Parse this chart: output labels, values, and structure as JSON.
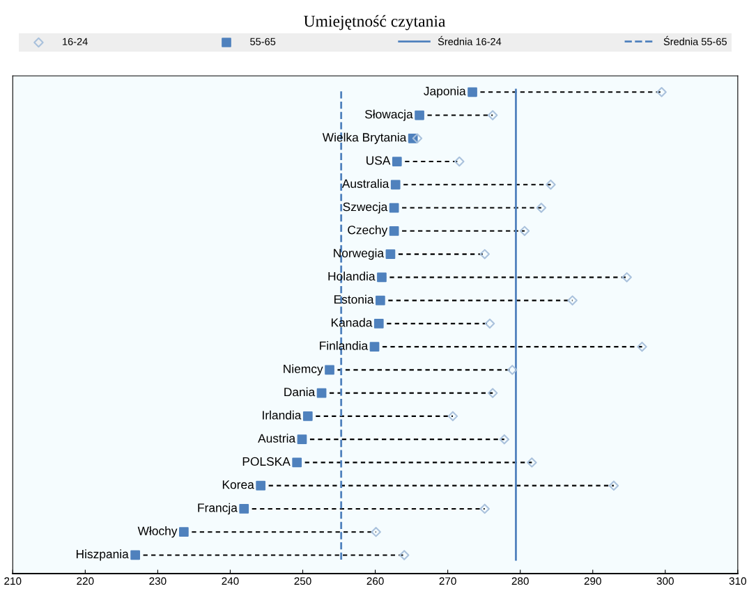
{
  "chart_data": {
    "type": "scatter",
    "orientation": "horizontal",
    "title": "Umiejętność czytania",
    "categories": [
      "Japonia",
      "Słowacja",
      "Wielka Brytania",
      "USA",
      "Australia",
      "Szwecja",
      "Czechy",
      "Norwegia",
      "Holandia",
      "Estonia",
      "Kanada",
      "Finlandia",
      "Niemcy",
      "Dania",
      "Irlandia",
      "Austria",
      "POLSKA",
      "Korea",
      "Francja",
      "Włochy",
      "Hiszpania"
    ],
    "series": [
      {
        "name": "16-24",
        "color": "#a9c1dc",
        "marker": "diamond",
        "values": [
          299.5,
          276.2,
          265.8,
          271.6,
          284.2,
          282.9,
          280.6,
          275.1,
          294.7,
          287.2,
          275.8,
          296.8,
          278.9,
          276.2,
          270.7,
          277.8,
          281.6,
          292.9,
          275.1,
          260.1,
          264.0
        ]
      },
      {
        "name": "55-65",
        "color": "#4f81bd",
        "marker": "square",
        "values": [
          273.4,
          266.1,
          265.2,
          263.0,
          262.8,
          262.6,
          262.6,
          262.1,
          260.9,
          260.7,
          260.5,
          259.9,
          253.7,
          252.6,
          250.7,
          249.9,
          249.2,
          244.2,
          241.9,
          233.6,
          226.9
        ]
      }
    ],
    "ref_lines": [
      {
        "axis": "x",
        "value": 279.4,
        "label": "Średnia 16-24",
        "color": "#4f81bd",
        "line_style": "solid"
      },
      {
        "axis": "x",
        "value": 255.3,
        "label": "Średnia 55-65",
        "color": "#4f81bd",
        "line_style": "dashed"
      }
    ],
    "xlim": [
      210,
      310
    ],
    "xticks": [
      210,
      220,
      230,
      240,
      250,
      260,
      270,
      280,
      290,
      300,
      310
    ],
    "tick_labels": "x",
    "grid": false,
    "legend": "top"
  }
}
